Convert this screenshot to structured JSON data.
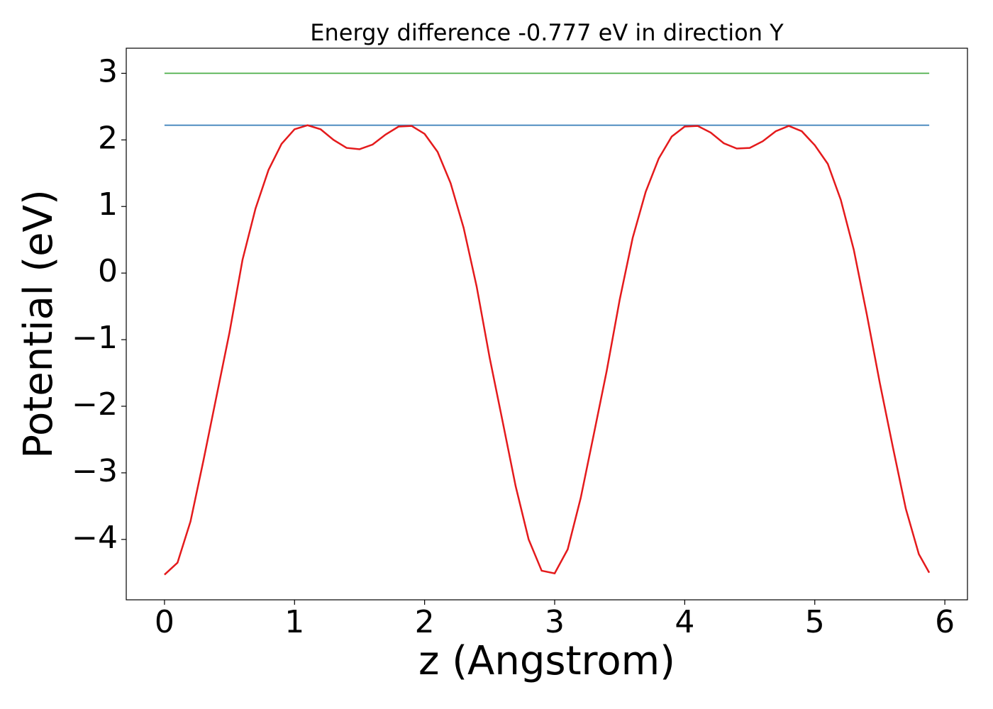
{
  "chart_data": {
    "type": "line",
    "title": "Energy difference -0.777 eV in direction Y",
    "xlabel": "z (Angstrom)",
    "ylabel": "Potential (eV)",
    "xlim": [
      -0.294,
      6.174
    ],
    "ylim": [
      -4.907,
      3.377
    ],
    "xticks": [
      0,
      1,
      2,
      3,
      4,
      5,
      6
    ],
    "yticks": [
      {
        "value": -4,
        "label": "−4"
      },
      {
        "value": -3,
        "label": "−3"
      },
      {
        "value": -2,
        "label": "−2"
      },
      {
        "value": -1,
        "label": "−1"
      },
      0,
      1,
      2,
      3
    ],
    "grid": false,
    "series": [
      {
        "color": "#377eb8",
        "x": [
          0,
          5.88
        ],
        "values": [
          2.22,
          2.22
        ]
      },
      {
        "color": "#4daf4a",
        "x": [
          0,
          5.88
        ],
        "values": [
          3.0,
          3.0
        ]
      },
      {
        "color": "#e41a1c",
        "x": [
          0,
          0.1,
          0.2,
          0.3,
          0.4,
          0.5,
          0.6,
          0.7,
          0.8,
          0.9,
          1.0,
          1.1,
          1.2,
          1.3,
          1.4,
          1.5,
          1.6,
          1.7,
          1.8,
          1.9,
          2.0,
          2.1,
          2.2,
          2.3,
          2.4,
          2.5,
          2.6,
          2.7,
          2.8,
          2.9,
          3.0,
          3.1,
          3.2,
          3.3,
          3.4,
          3.5,
          3.6,
          3.7,
          3.8,
          3.9,
          4.0,
          4.1,
          4.2,
          4.3,
          4.4,
          4.5,
          4.6,
          4.7,
          4.8,
          4.9,
          5.0,
          5.1,
          5.2,
          5.3,
          5.4,
          5.5,
          5.6,
          5.7,
          5.8,
          5.88
        ],
        "values": [
          -4.53,
          -4.35,
          -3.73,
          -2.81,
          -1.85,
          -0.89,
          0.2,
          0.97,
          1.55,
          1.94,
          2.16,
          2.22,
          2.16,
          2.0,
          1.88,
          1.86,
          1.93,
          2.08,
          2.2,
          2.21,
          2.09,
          1.82,
          1.35,
          0.68,
          -0.2,
          -1.27,
          -2.23,
          -3.2,
          -4.0,
          -4.47,
          -4.51,
          -4.15,
          -3.38,
          -2.43,
          -1.47,
          -0.4,
          0.53,
          1.22,
          1.72,
          2.05,
          2.2,
          2.21,
          2.11,
          1.95,
          1.87,
          1.88,
          1.98,
          2.13,
          2.21,
          2.13,
          1.92,
          1.64,
          1.1,
          0.35,
          -0.62,
          -1.65,
          -2.61,
          -3.54,
          -4.22,
          -4.5
        ]
      }
    ]
  }
}
